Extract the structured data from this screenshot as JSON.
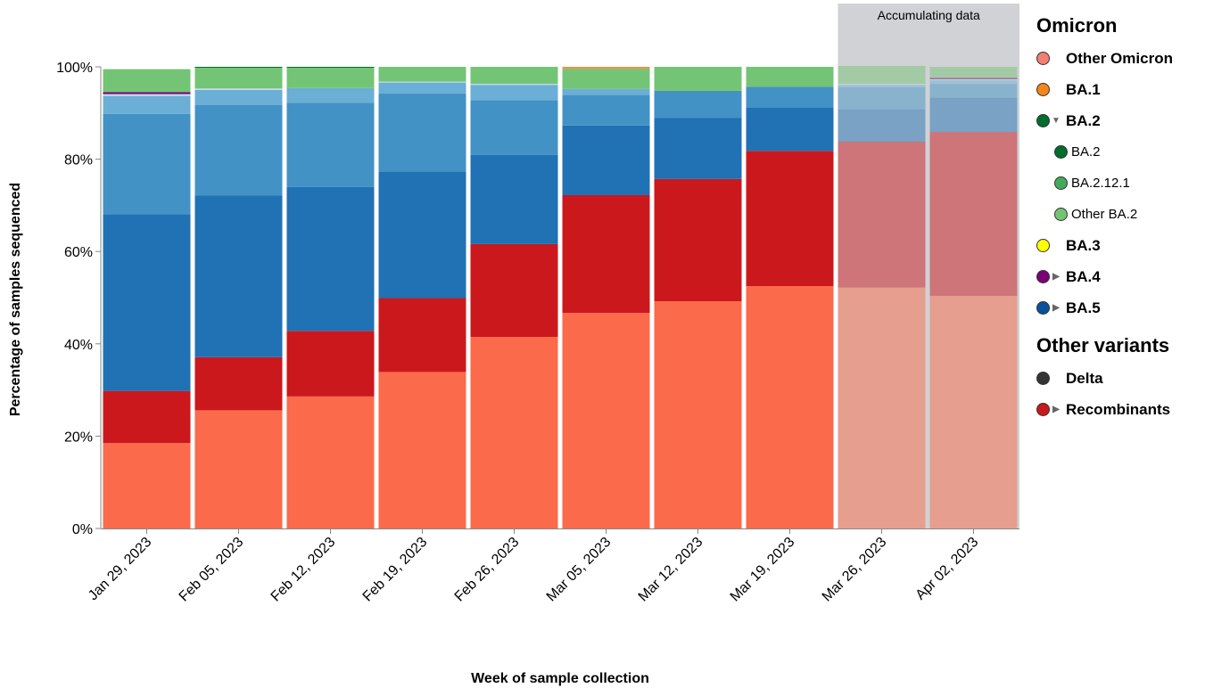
{
  "chart_data": {
    "type": "bar",
    "stacked": true,
    "categories": [
      "Jan 29, 2023",
      "Feb 05, 2023",
      "Feb 12, 2023",
      "Feb 19, 2023",
      "Feb 26, 2023",
      "Mar 05, 2023",
      "Mar 12, 2023",
      "Mar 19, 2023",
      "Mar 26, 2023",
      "Apr 02, 2023"
    ],
    "xlabel": "Week of sample collection",
    "ylabel": "Percentage of samples sequenced",
    "ylim": [
      0,
      100
    ],
    "yticks": [
      "0%",
      "20%",
      "40%",
      "60%",
      "80%",
      "100%"
    ],
    "accumulating_label": "Accumulating data",
    "accumulating_categories": [
      "Mar 26, 2023",
      "Apr 02, 2023"
    ],
    "series": [
      {
        "color": "#fb6a4a",
        "values": [
          18.5,
          25.6,
          28.6,
          33.9,
          41.5,
          46.7,
          49.2,
          52.5,
          52.2,
          50.4
        ]
      },
      {
        "color": "#cb181d",
        "values": [
          11.3,
          11.5,
          14.2,
          16.0,
          20.1,
          25.5,
          26.5,
          29.3,
          31.6,
          35.5
        ]
      },
      {
        "color": "#2171b5",
        "values": [
          38.3,
          35.0,
          31.2,
          27.4,
          19.3,
          15.1,
          13.2,
          9.4,
          7.0,
          7.4
        ]
      },
      {
        "color": "#4292c6",
        "values": [
          21.7,
          19.6,
          18.2,
          16.9,
          11.9,
          6.6,
          5.9,
          4.5,
          4.8,
          3.0
        ]
      },
      {
        "color": "#6baed6",
        "values": [
          3.9,
          3.3,
          3.2,
          2.4,
          3.3,
          1.3,
          0.0,
          0.0,
          0.5,
          0.8
        ]
      },
      {
        "color": "#c6dbef",
        "values": [
          0.4,
          0.3,
          0.0,
          0.2,
          0.2,
          0.0,
          0.0,
          0.0,
          0.2,
          0.2
        ]
      },
      {
        "color": "#7a0177",
        "values": [
          0.4,
          0.0,
          0.0,
          0.0,
          0.0,
          0.0,
          0.0,
          0.0,
          0.0,
          0.3
        ]
      },
      {
        "color": "#74c476",
        "values": [
          5.0,
          4.5,
          4.4,
          3.2,
          3.7,
          4.4,
          5.2,
          4.3,
          3.9,
          2.4
        ]
      },
      {
        "color": "#006d2c",
        "values": [
          0.0,
          0.2,
          0.2,
          0.0,
          0.0,
          0.0,
          0.0,
          0.0,
          0.0,
          0.0
        ]
      },
      {
        "color": "#fd8d3c",
        "values": [
          0.0,
          0.0,
          0.0,
          0.0,
          0.0,
          0.4,
          0.0,
          0.0,
          0.0,
          0.0
        ]
      }
    ]
  },
  "legend": {
    "groups": [
      {
        "title": "Omicron",
        "items": [
          {
            "label": "Other Omicron",
            "color": "#f08070",
            "arrow": "none",
            "sub": false
          },
          {
            "label": "BA.1",
            "color": "#f58518",
            "arrow": "none",
            "sub": false
          },
          {
            "label": "BA.2",
            "color": "#006d2c",
            "arrow": "down",
            "sub": false
          },
          {
            "label": "BA.2",
            "color": "#006d2c",
            "arrow": "none",
            "sub": true
          },
          {
            "label": "BA.2.12.1",
            "color": "#41ab5d",
            "arrow": "none",
            "sub": true
          },
          {
            "label": "Other BA.2",
            "color": "#74c476",
            "arrow": "none",
            "sub": true
          },
          {
            "label": "BA.3",
            "color": "#ffff00",
            "arrow": "none",
            "sub": false
          },
          {
            "label": "BA.4",
            "color": "#7a0177",
            "arrow": "right",
            "sub": false
          },
          {
            "label": "BA.5",
            "color": "#08519c",
            "arrow": "right",
            "sub": false
          }
        ]
      },
      {
        "title": "Other variants",
        "items": [
          {
            "label": "Delta",
            "color": "#333333",
            "arrow": "none",
            "sub": false
          },
          {
            "label": "Recombinants",
            "color": "#cb181d",
            "arrow": "right",
            "sub": false
          }
        ]
      }
    ]
  }
}
